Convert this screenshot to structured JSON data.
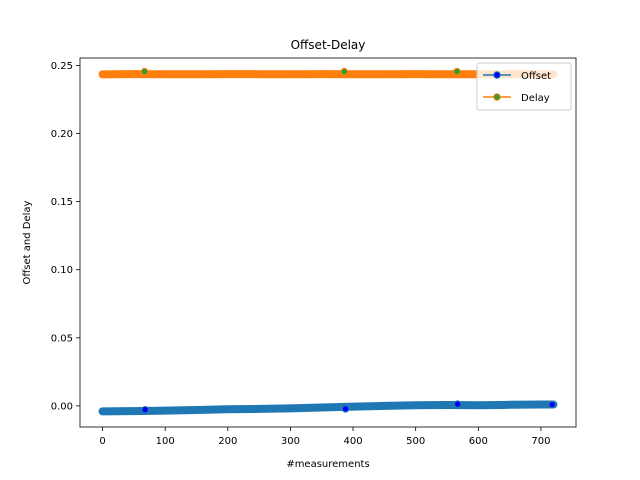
{
  "chart_data": {
    "type": "line",
    "title": "Offset-Delay",
    "xlabel": "#measurements",
    "ylabel": "Offset and Delay",
    "xlim": [
      -36,
      756
    ],
    "ylim": [
      -0.0155,
      0.2555
    ],
    "xticks": [
      0,
      100,
      200,
      300,
      400,
      500,
      600,
      700
    ],
    "yticks": [
      0.0,
      0.05,
      0.1,
      0.15,
      0.2,
      0.25
    ],
    "ytick_labels": [
      "0.00",
      "0.05",
      "0.10",
      "0.15",
      "0.20",
      "0.25"
    ],
    "grid": false,
    "legend_position": "top-right",
    "series": [
      {
        "name": "Offset",
        "color": "#1f77b4",
        "marker_color": "#0000ff",
        "x": [
          0,
          50,
          100,
          150,
          200,
          250,
          300,
          350,
          400,
          450,
          500,
          550,
          600,
          650,
          700,
          720
        ],
        "y": [
          -0.004,
          -0.0038,
          -0.0035,
          -0.003,
          -0.0025,
          -0.0022,
          -0.0018,
          -0.0012,
          -0.0005,
          0.0,
          0.0005,
          0.0007,
          0.0005,
          0.0008,
          0.001,
          0.001
        ],
        "markers": [
          {
            "x": 68,
            "y": -0.0028
          },
          {
            "x": 388,
            "y": -0.0022
          },
          {
            "x": 567,
            "y": 0.0013
          },
          {
            "x": 718,
            "y": 0.001
          }
        ]
      },
      {
        "name": "Delay",
        "color": "#ff7f0e",
        "marker_color": "#2ca02c",
        "x": [
          0,
          50,
          100,
          150,
          200,
          250,
          300,
          350,
          400,
          450,
          500,
          550,
          600,
          650,
          700,
          720
        ],
        "y": [
          0.2435,
          0.2437,
          0.2436,
          0.2436,
          0.2437,
          0.2436,
          0.2436,
          0.2437,
          0.2436,
          0.2436,
          0.2437,
          0.2436,
          0.2436,
          0.2437,
          0.2436,
          0.2436
        ],
        "markers": [
          {
            "x": 67,
            "y": 0.2455
          },
          {
            "x": 386,
            "y": 0.2455
          },
          {
            "x": 566,
            "y": 0.2455
          }
        ]
      }
    ]
  }
}
